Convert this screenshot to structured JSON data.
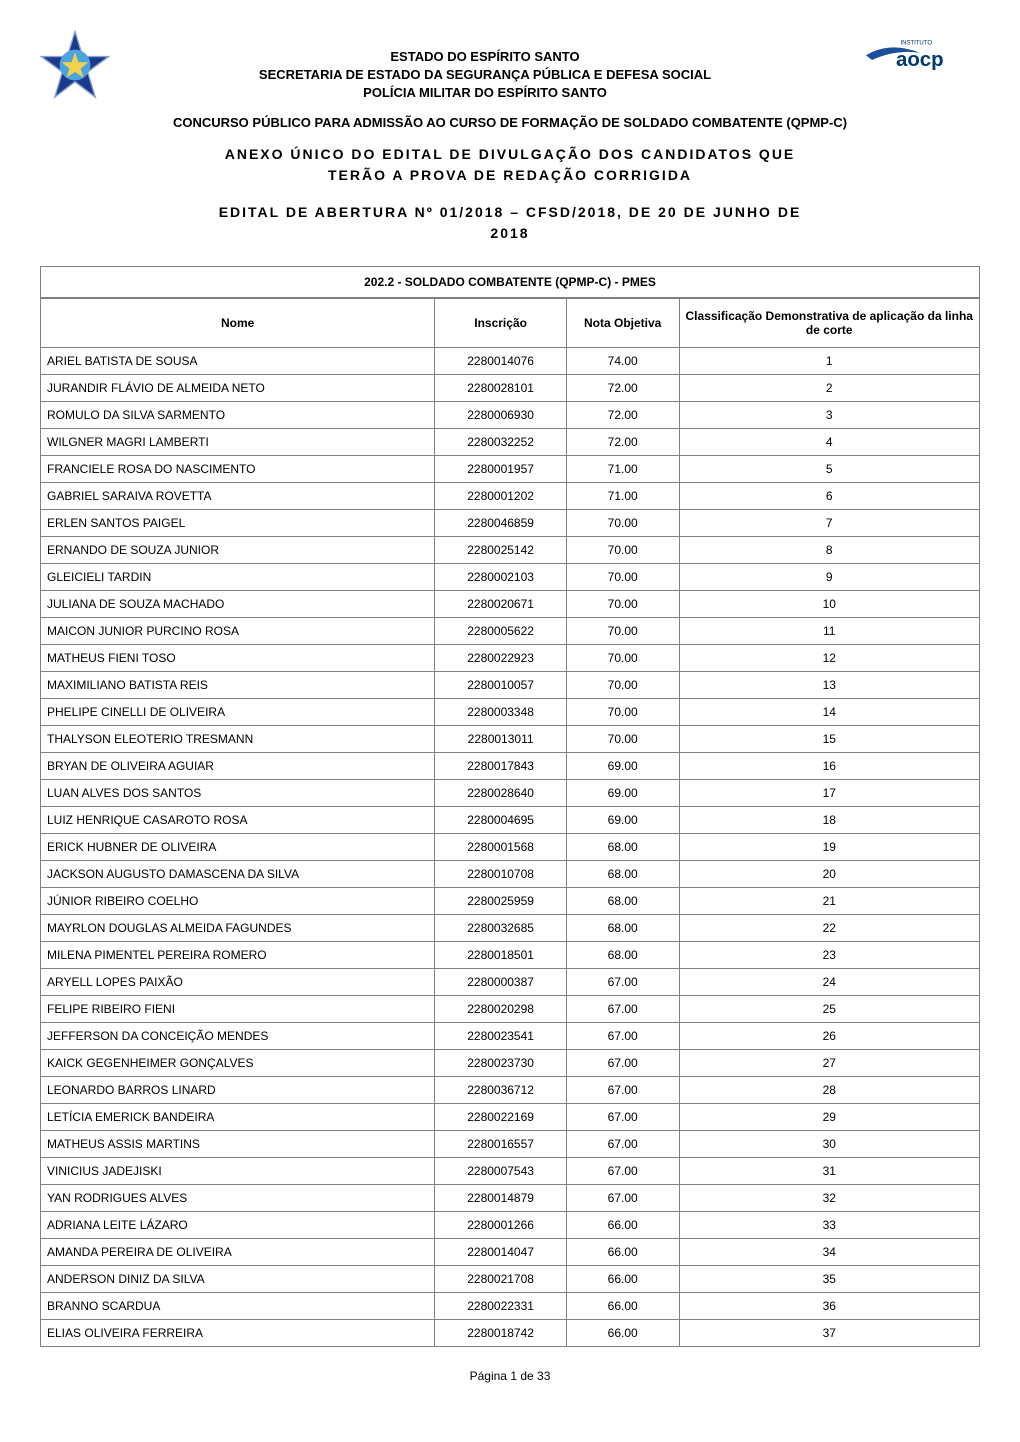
{
  "header": {
    "line1": "ESTADO DO ESPÍRITO SANTO",
    "line2": "SECRETARIA DE ESTADO DA SEGURANÇA PÚBLICA E DEFESA SOCIAL",
    "line3": "POLÍCIA MILITAR DO ESPÍRITO SANTO"
  },
  "logo_right": {
    "institute_text": "INSTITUTO",
    "brand_text": "aocp",
    "text_color": "#003a70",
    "swoosh_color": "#1b4f9b"
  },
  "emblem_left": {
    "outer_fill": "#1b3a8a",
    "inner_fill": "#4da3dd",
    "star_fill": "#f4d14a",
    "stroke": "#8aa3d6"
  },
  "concurso_title": "CONCURSO PÚBLICO PARA ADMISSÃO AO CURSO DE FORMAÇÃO DE SOLDADO COMBATENTE (QPMP-C)",
  "anexo_title_line1": "ANEXO ÚNICO DO EDITAL DE DIVULGAÇÃO DOS CANDIDATOS QUE",
  "anexo_title_line2": "TERÃO A PROVA DE REDAÇÃO CORRIGIDA",
  "edital_title_line1": "EDITAL DE ABERTURA Nº 01/2018 – CFSD/2018, DE 20 DE JUNHO DE",
  "edital_title_line2": "2018",
  "table": {
    "role_caption": "202.2 - SOLDADO COMBATENTE (QPMP-C) - PMES",
    "columns": [
      "Nome",
      "Inscrição",
      "Nota Objetiva",
      "Classificação Demonstrativa de aplicação da linha de corte"
    ],
    "col_widths_pct": [
      42,
      14,
      12,
      32
    ],
    "col_align": [
      "left",
      "center",
      "center",
      "center"
    ],
    "border_color": "#808080",
    "header_bg": "#ffffff",
    "font_size_pt": 9,
    "rows": [
      [
        "ARIEL BATISTA DE SOUSA",
        "2280014076",
        "74.00",
        "1"
      ],
      [
        "JURANDIR FLÁVIO DE ALMEIDA NETO",
        "2280028101",
        "72.00",
        "2"
      ],
      [
        "ROMULO DA SILVA SARMENTO",
        "2280006930",
        "72.00",
        "3"
      ],
      [
        "WILGNER MAGRI LAMBERTI",
        "2280032252",
        "72.00",
        "4"
      ],
      [
        "FRANCIELE ROSA DO NASCIMENTO",
        "2280001957",
        "71.00",
        "5"
      ],
      [
        "GABRIEL SARAIVA ROVETTA",
        "2280001202",
        "71.00",
        "6"
      ],
      [
        "ERLEN SANTOS PAIGEL",
        "2280046859",
        "70.00",
        "7"
      ],
      [
        "ERNANDO DE SOUZA JUNIOR",
        "2280025142",
        "70.00",
        "8"
      ],
      [
        "GLEICIELI TARDIN",
        "2280002103",
        "70.00",
        "9"
      ],
      [
        "JULIANA DE SOUZA MACHADO",
        "2280020671",
        "70.00",
        "10"
      ],
      [
        "MAICON JUNIOR PURCINO ROSA",
        "2280005622",
        "70.00",
        "11"
      ],
      [
        "MATHEUS FIENI TOSO",
        "2280022923",
        "70.00",
        "12"
      ],
      [
        "MAXIMILIANO BATISTA REIS",
        "2280010057",
        "70.00",
        "13"
      ],
      [
        "PHELIPE CINELLI DE OLIVEIRA",
        "2280003348",
        "70.00",
        "14"
      ],
      [
        "THALYSON ELEOTERIO TRESMANN",
        "2280013011",
        "70.00",
        "15"
      ],
      [
        "BRYAN DE OLIVEIRA AGUIAR",
        "2280017843",
        "69.00",
        "16"
      ],
      [
        "LUAN ALVES DOS SANTOS",
        "2280028640",
        "69.00",
        "17"
      ],
      [
        "LUIZ HENRIQUE CASAROTO ROSA",
        "2280004695",
        "69.00",
        "18"
      ],
      [
        "ERICK HUBNER DE OLIVEIRA",
        "2280001568",
        "68.00",
        "19"
      ],
      [
        "JACKSON AUGUSTO DAMASCENA DA SILVA",
        "2280010708",
        "68.00",
        "20"
      ],
      [
        "JÚNIOR RIBEIRO COELHO",
        "2280025959",
        "68.00",
        "21"
      ],
      [
        "MAYRLON DOUGLAS ALMEIDA FAGUNDES",
        "2280032685",
        "68.00",
        "22"
      ],
      [
        "MILENA PIMENTEL PEREIRA ROMERO",
        "2280018501",
        "68.00",
        "23"
      ],
      [
        "ARYELL LOPES PAIXÃO",
        "2280000387",
        "67.00",
        "24"
      ],
      [
        "FELIPE RIBEIRO FIENI",
        "2280020298",
        "67.00",
        "25"
      ],
      [
        "JEFFERSON DA CONCEIÇÃO MENDES",
        "2280023541",
        "67.00",
        "26"
      ],
      [
        "KAICK GEGENHEIMER GONÇALVES",
        "2280023730",
        "67.00",
        "27"
      ],
      [
        "LEONARDO BARROS LINARD",
        "2280036712",
        "67.00",
        "28"
      ],
      [
        "LETÍCIA EMERICK BANDEIRA",
        "2280022169",
        "67.00",
        "29"
      ],
      [
        "MATHEUS ASSIS MARTINS",
        "2280016557",
        "67.00",
        "30"
      ],
      [
        "VINICIUS JADEJISKI",
        "2280007543",
        "67.00",
        "31"
      ],
      [
        "YAN RODRIGUES ALVES",
        "2280014879",
        "67.00",
        "32"
      ],
      [
        "ADRIANA LEITE LÁZARO",
        "2280001266",
        "66.00",
        "33"
      ],
      [
        "AMANDA PEREIRA DE OLIVEIRA",
        "2280014047",
        "66.00",
        "34"
      ],
      [
        "ANDERSON DINIZ DA SILVA",
        "2280021708",
        "66.00",
        "35"
      ],
      [
        "BRANNO SCARDUA",
        "2280022331",
        "66.00",
        "36"
      ],
      [
        "ELIAS OLIVEIRA FERREIRA",
        "2280018742",
        "66.00",
        "37"
      ]
    ]
  },
  "footer": {
    "prefix": "Página ",
    "current": "1",
    "separator": " de ",
    "total": "33"
  },
  "colors": {
    "text": "#000000",
    "border": "#808080",
    "background": "#ffffff"
  }
}
